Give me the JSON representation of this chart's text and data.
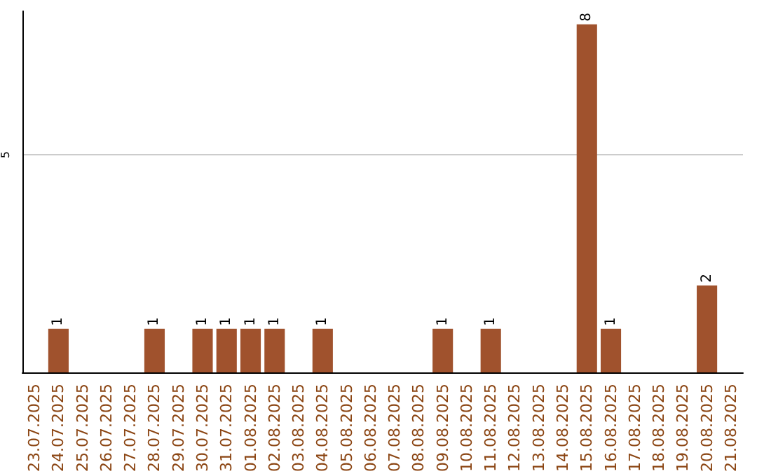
{
  "chart_data": {
    "type": "bar",
    "categories": [
      "23.07.2025",
      "24.07.2025",
      "25.07.2025",
      "26.07.2025",
      "27.07.2025",
      "28.07.2025",
      "29.07.2025",
      "30.07.2025",
      "31.07.2025",
      "01.08.2025",
      "02.08.2025",
      "03.08.2025",
      "04.08.2025",
      "05.08.2025",
      "06.08.2025",
      "07.08.2025",
      "08.08.2025",
      "09.08.2025",
      "10.08.2025",
      "11.08.2025",
      "12.08.2025",
      "13.08.2025",
      "14.08.2025",
      "15.08.2025",
      "16.08.2025",
      "17.08.2025",
      "18.08.2025",
      "19.08.2025",
      "20.08.2025",
      "21.08.2025"
    ],
    "values": [
      0,
      1,
      0,
      0,
      0,
      1,
      0,
      1,
      1,
      1,
      1,
      0,
      1,
      0,
      0,
      0,
      0,
      1,
      0,
      1,
      0,
      0,
      0,
      8,
      1,
      0,
      0,
      0,
      2,
      0
    ],
    "value_labels": [
      null,
      "1",
      null,
      null,
      null,
      "1",
      null,
      "1",
      "1",
      "1",
      "1",
      null,
      "1",
      null,
      null,
      null,
      null,
      "1",
      null,
      "1",
      null,
      null,
      null,
      "8",
      "1",
      null,
      null,
      null,
      "2",
      null
    ],
    "color": "#a0522d",
    "ylim": [
      0,
      8.3
    ],
    "yticks": [
      5
    ],
    "grid": "y"
  }
}
